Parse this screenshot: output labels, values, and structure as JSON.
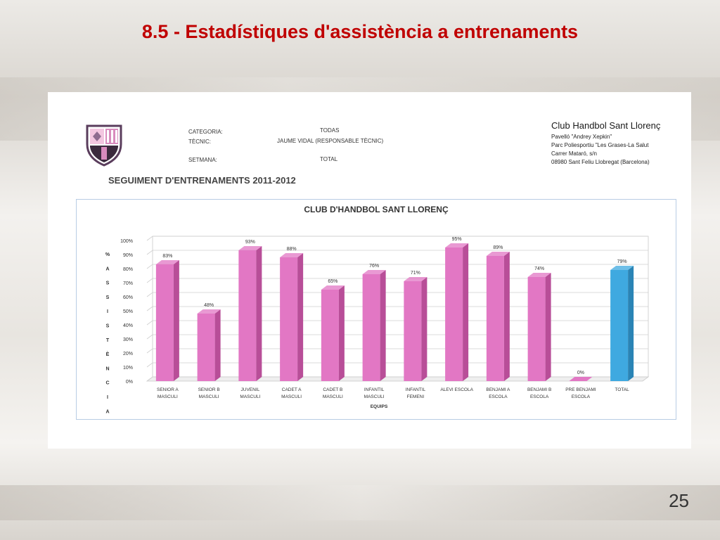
{
  "slide": {
    "title": "8.5 - Estadístiques d'assistència a entrenaments",
    "page_number": "25"
  },
  "header": {
    "categoria_label": "CATEGORIA:",
    "categoria_value": "TODAS",
    "tecnic_label": "TÈCNIC:",
    "tecnic_value": "JAUME VIDAL (RESPONSABLE TÈCNIC)",
    "setmana_label": "SETMANA:",
    "setmana_value": "TOTAL",
    "subtitle": "SEGUIMENT D'ENTRENAMENTS 2011-2012"
  },
  "club": {
    "name": "Club Handbol Sant Llorenç",
    "lines": [
      "Pavelló \"Andrey Xepkin\"",
      "Parc Poliesportiu \"Les Grases-La Salut",
      "Carrer Mataró, s/n",
      "08980 Sant Feliu Llobregat (Barcelona)"
    ]
  },
  "colors": {
    "title": "#c00000",
    "bar_pink": "#e277c4",
    "bar_pink_side": "#b84e98",
    "bar_total": "#3fa9e0",
    "bar_total_side": "#2a84b5"
  },
  "chart_data": {
    "type": "bar",
    "title": "CLUB D'HANDBOL SANT LLORENÇ",
    "xlabel": "EQUIPS",
    "ylabel_letters": [
      "%",
      "A",
      "S",
      "S",
      "I",
      "S",
      "T",
      "È",
      "N",
      "C",
      "I",
      "A"
    ],
    "ylim": [
      0,
      100
    ],
    "yticks": [
      "0%",
      "10%",
      "20%",
      "30%",
      "40%",
      "50%",
      "60%",
      "70%",
      "80%",
      "90%",
      "100%"
    ],
    "grid": true,
    "categories": [
      [
        "SENIOR A",
        "MASCULI"
      ],
      [
        "SENIOR B",
        "MASCULI"
      ],
      [
        "JUVENIL",
        "MASCULI"
      ],
      [
        "CADET A",
        "MASCULI"
      ],
      [
        "CADET B",
        "MASCULI"
      ],
      [
        "INFANTIL",
        "MASCULI"
      ],
      [
        "INFANTIL",
        "FEMENI"
      ],
      [
        "ALEVI ESCOLA"
      ],
      [
        "BENJAMI A",
        "ESCOLA"
      ],
      [
        "BENJAMI B",
        "ESCOLA"
      ],
      [
        "PRE BENJAMI",
        "ESCOLA"
      ],
      [
        "TOTAL"
      ]
    ],
    "values": [
      83,
      48,
      93,
      88,
      65,
      76,
      71,
      95,
      89,
      74,
      0,
      79
    ],
    "value_labels": [
      "83%",
      "48%",
      "93%",
      "88%",
      "65%",
      "76%",
      "71%",
      "95%",
      "89%",
      "74%",
      "0%",
      "79%"
    ]
  }
}
